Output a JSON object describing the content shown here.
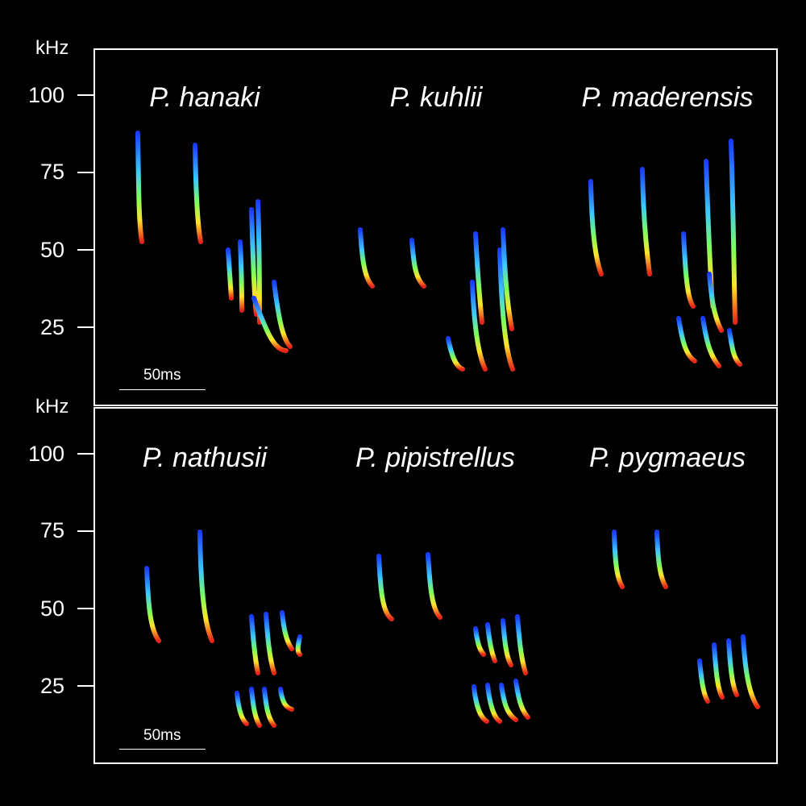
{
  "axis_unit": "kHz",
  "y_ticks": [
    "100",
    "75",
    "50",
    "25"
  ],
  "scale_bar_label": "50ms",
  "panels": [
    {
      "species": [
        "P. hanaki",
        "P. kuhlii",
        "P. maderensis"
      ]
    },
    {
      "species": [
        "P. nathusii",
        "P. pipistrellus",
        "P. pygmaeus"
      ]
    }
  ],
  "colors": {
    "background": "#000000",
    "frame": "#ffffff",
    "spectrogram_low": "#1a3cff",
    "spectrogram_mid1": "#3cc8ff",
    "spectrogram_mid2": "#7fff5a",
    "spectrogram_mid3": "#ffe32a",
    "spectrogram_high": "#e8231a"
  }
}
